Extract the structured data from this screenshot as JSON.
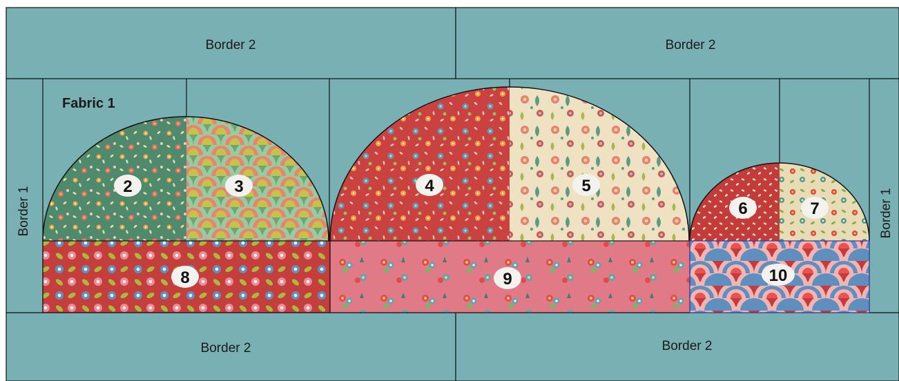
{
  "diagram": {
    "colors": {
      "background": "#79b0b3",
      "line": "#111111",
      "badge": "#f4f2ee"
    },
    "border_top_left": "Border 2",
    "border_top_right": "Border 2",
    "border_bottom_left": "Border 2",
    "border_bottom_right": "Border 2",
    "border_left": "Border 1",
    "border_right": "Border 1",
    "fabric_label": "Fabric 1",
    "pieces": [
      {
        "num": "2",
        "name": "green-floral",
        "base": "#4e8a6b"
      },
      {
        "num": "3",
        "name": "green-scallop-fan",
        "base": "#6aa774"
      },
      {
        "num": "4",
        "name": "red-floral",
        "base": "#c9423f"
      },
      {
        "num": "5",
        "name": "cream-paisley",
        "base": "#efe2c2"
      },
      {
        "num": "6",
        "name": "red-dots",
        "base": "#c23c3a"
      },
      {
        "num": "7",
        "name": "cream-floral",
        "base": "#e8dcb6"
      },
      {
        "num": "8",
        "name": "red-flower-vine",
        "base": "#c43f3c"
      },
      {
        "num": "9",
        "name": "pink-bouquet",
        "base": "#e07a86"
      },
      {
        "num": "10",
        "name": "red-scallop-fan",
        "base": "#c53a3a"
      }
    ]
  }
}
